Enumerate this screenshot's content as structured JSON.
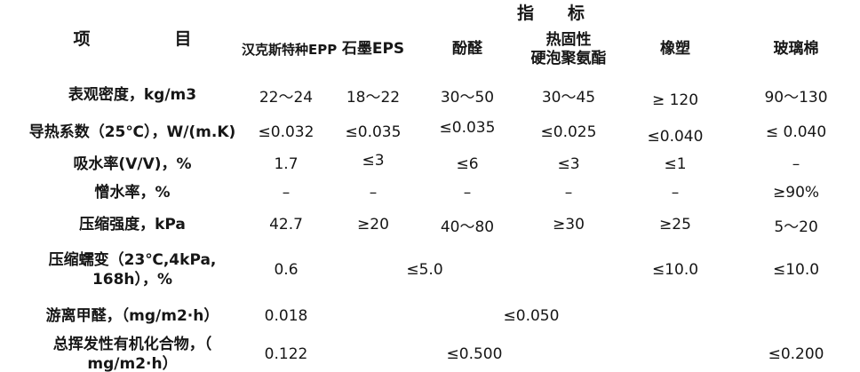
{
  "page": {
    "background": "#ffffff",
    "text_color": "#161616"
  },
  "table": {
    "item_label": "项　　　　　目",
    "indicator_label": "指　　标",
    "columns": [
      {
        "lines": [
          "汉克斯特种EPP"
        ]
      },
      {
        "lines": [
          "石墨EPS"
        ]
      },
      {
        "lines": [
          "酚醛"
        ]
      },
      {
        "lines": [
          "热固性",
          "硬泡聚氨酯"
        ]
      },
      {
        "lines": [
          "橡塑"
        ]
      },
      {
        "lines": [
          "玻璃棉"
        ]
      }
    ],
    "rows": [
      {
        "label_lines": [
          "表观密度，kg/m3"
        ],
        "cells": [
          {
            "text": "22～24"
          },
          {
            "text": "18～22"
          },
          {
            "text": "30～50"
          },
          {
            "text": "30～45"
          },
          {
            "text": "≥ 120"
          },
          {
            "text": "90～130"
          }
        ]
      },
      {
        "label_lines": [
          "导热系数（25℃），W/(m.K)"
        ],
        "cells": [
          {
            "text": "≤0.032"
          },
          {
            "text": "≤0.035"
          },
          {
            "text": "≤0.035"
          },
          {
            "text": "≤0.025"
          },
          {
            "text": "≤0.040"
          },
          {
            "text": "≤ 0.040"
          }
        ]
      },
      {
        "label_lines": [
          "吸水率(V/V)，%"
        ],
        "cells": [
          {
            "text": "1.7"
          },
          {
            "text": "≤3"
          },
          {
            "text": "≤6"
          },
          {
            "text": "≤3"
          },
          {
            "text": "≤1"
          },
          {
            "text": "–"
          }
        ]
      },
      {
        "label_lines": [
          "憎水率，%"
        ],
        "cells": [
          {
            "text": "–"
          },
          {
            "text": "–"
          },
          {
            "text": "–"
          },
          {
            "text": "–"
          },
          {
            "text": "–"
          },
          {
            "text": "≥90%"
          }
        ]
      },
      {
        "label_lines": [
          "压缩强度，kPa"
        ],
        "cells": [
          {
            "text": "42.7"
          },
          {
            "text": "≥20"
          },
          {
            "text": "40～80"
          },
          {
            "text": "≥30"
          },
          {
            "text": "≥25"
          },
          {
            "text": "5～20"
          }
        ]
      },
      {
        "label_lines": [
          "压缩蠕变（23℃,4kPa,",
          "168h），%"
        ],
        "cells": [
          {
            "text": "0.6"
          },
          {
            "text": "≤5.0",
            "colspan": 2
          },
          {
            "text": ""
          },
          {
            "text": "≤10.0"
          },
          {
            "text": "≤10.0"
          }
        ]
      },
      {
        "label_lines": [
          "游离甲醛，（mg/m2·h）"
        ],
        "cells": [
          {
            "text": "0.018"
          },
          {
            "text": "≤0.050",
            "colspan": 4
          },
          {
            "text": ""
          }
        ]
      },
      {
        "label_lines": [
          "总挥发性有机化合物，（",
          "mg/m2·h）"
        ],
        "cells": [
          {
            "text": "0.122"
          },
          {
            "text": "≤0.500",
            "colspan": 3
          },
          {
            "text": ""
          },
          {
            "text": "≤0.200"
          }
        ]
      }
    ]
  },
  "chart_data": {
    "type": "table",
    "title": "指标",
    "row_header": "项目",
    "columns": [
      "汉克斯特种EPP",
      "石墨EPS",
      "酚醛",
      "热固性硬泡聚氨酯",
      "橡塑",
      "玻璃棉"
    ],
    "rows": [
      {
        "item": "表观密度，kg/m3",
        "values": [
          "22～24",
          "18～22",
          "30～50",
          "30～45",
          "≥120",
          "90～130"
        ]
      },
      {
        "item": "导热系数（25℃），W/(m.K)",
        "values": [
          "≤0.032",
          "≤0.035",
          "≤0.035",
          "≤0.025",
          "≤0.040",
          "≤0.040"
        ]
      },
      {
        "item": "吸水率(V/V)，%",
        "values": [
          "1.7",
          "≤3",
          "≤6",
          "≤3",
          "≤1",
          "–"
        ]
      },
      {
        "item": "憎水率，%",
        "values": [
          "–",
          "–",
          "–",
          "–",
          "–",
          "≥90%"
        ]
      },
      {
        "item": "压缩强度，kPa",
        "values": [
          "42.7",
          "≥20",
          "40～80",
          "≥30",
          "≥25",
          "5～20"
        ]
      },
      {
        "item": "压缩蠕变（23℃,4kPa,168h），%",
        "values": [
          "0.6",
          "≤5.0",
          "≤5.0",
          "",
          "≤10.0",
          "≤10.0"
        ]
      },
      {
        "item": "游离甲醛，（mg/m2·h）",
        "values": [
          "0.018",
          "≤0.050",
          "≤0.050",
          "≤0.050",
          "≤0.050",
          ""
        ]
      },
      {
        "item": "总挥发性有机化合物，（mg/m2·h）",
        "values": [
          "0.122",
          "≤0.500",
          "≤0.500",
          "≤0.500",
          "",
          "≤0.200"
        ]
      }
    ],
    "merged_cells": [
      {
        "row": "压缩蠕变（23℃,4kPa,168h），%",
        "value": "≤5.0",
        "spans": [
          "石墨EPS",
          "酚醛"
        ]
      },
      {
        "row": "游离甲醛，（mg/m2·h）",
        "value": "≤0.050",
        "spans": [
          "石墨EPS",
          "酚醛",
          "热固性硬泡聚氨酯",
          "橡塑"
        ]
      },
      {
        "row": "总挥发性有机化合物，（mg/m2·h）",
        "value": "≤0.500",
        "spans": [
          "石墨EPS",
          "酚醛",
          "热固性硬泡聚氨酯"
        ]
      }
    ],
    "grid": false
  }
}
